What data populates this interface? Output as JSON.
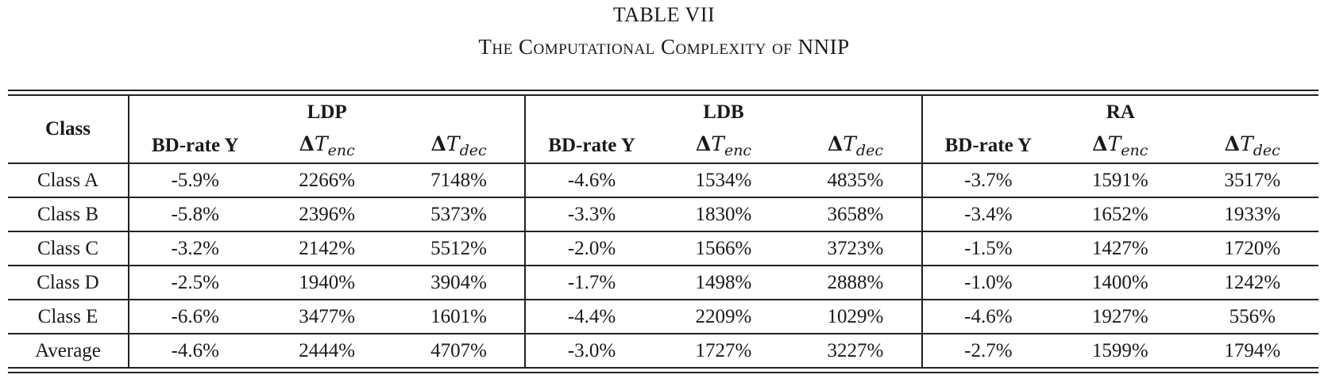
{
  "caption": {
    "number": "TABLE VII",
    "title": "The Computational Complexity of NNIP"
  },
  "table": {
    "class_header": "Class",
    "groups": [
      "LDP",
      "LDB",
      "RA"
    ],
    "subheaders": {
      "bd_rate": "BD-rate Y",
      "delta": "Δ",
      "t": "T",
      "enc": "enc",
      "dec": "dec"
    },
    "rows": [
      {
        "label": "Class A",
        "cells": [
          "-5.9%",
          "2266%",
          "7148%",
          "-4.6%",
          "1534%",
          "4835%",
          "-3.7%",
          "1591%",
          "3517%"
        ]
      },
      {
        "label": "Class B",
        "cells": [
          "-5.8%",
          "2396%",
          "5373%",
          "-3.3%",
          "1830%",
          "3658%",
          "-3.4%",
          "1652%",
          "1933%"
        ]
      },
      {
        "label": "Class C",
        "cells": [
          "-3.2%",
          "2142%",
          "5512%",
          "-2.0%",
          "1566%",
          "3723%",
          "-1.5%",
          "1427%",
          "1720%"
        ]
      },
      {
        "label": "Class D",
        "cells": [
          "-2.5%",
          "1940%",
          "3904%",
          "-1.7%",
          "1498%",
          "2888%",
          "-1.0%",
          "1400%",
          "1242%"
        ]
      },
      {
        "label": "Class E",
        "cells": [
          "-6.6%",
          "3477%",
          "1601%",
          "-4.4%",
          "2209%",
          "1029%",
          "-4.6%",
          "1927%",
          "556%"
        ]
      },
      {
        "label": "Average",
        "cells": [
          "-4.6%",
          "2444%",
          "4707%",
          "-3.0%",
          "1727%",
          "3227%",
          "-2.7%",
          "1599%",
          "1794%"
        ]
      }
    ]
  }
}
